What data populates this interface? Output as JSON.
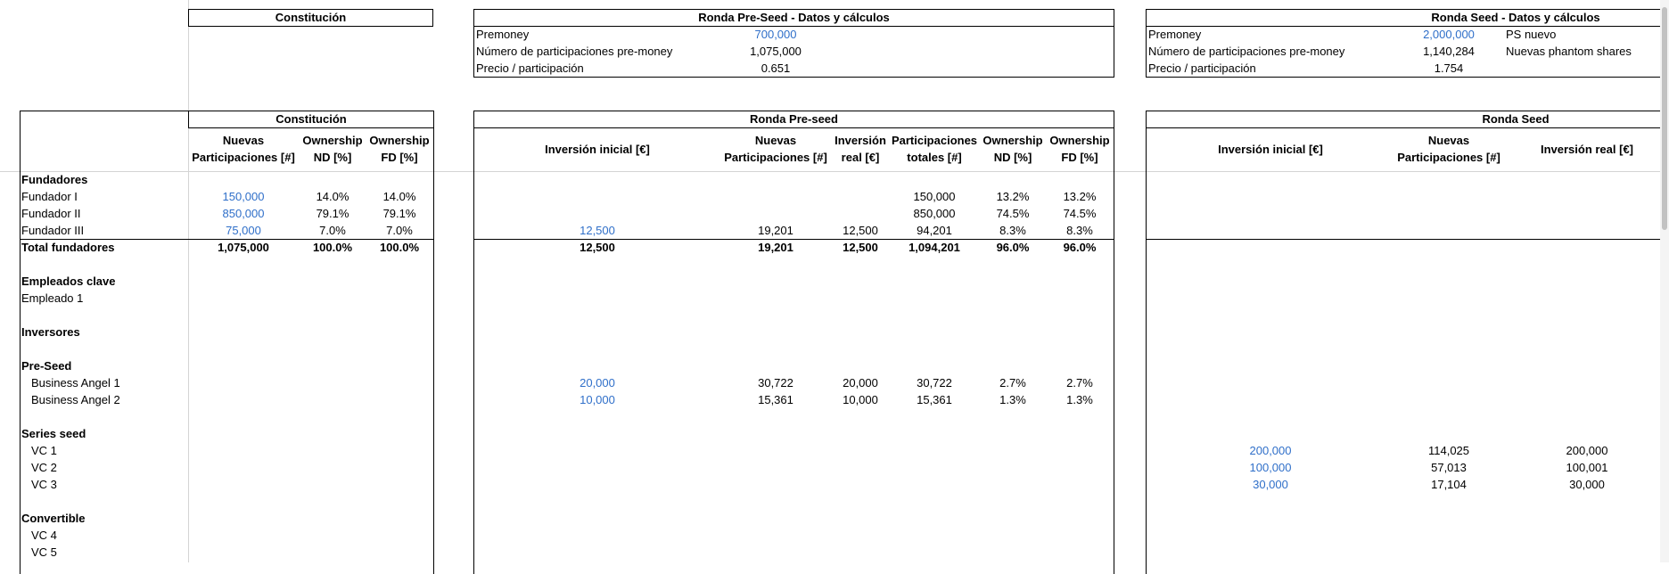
{
  "top": {
    "constitucion_title": "Constitución",
    "preseed": {
      "title": "Ronda Pre-Seed - Datos y cálculos",
      "premoney_label": "Premoney",
      "premoney_value": "700,000",
      "num_part_label": "Número de participaciones pre-money",
      "num_part_value": "1,075,000",
      "precio_label": "Precio / participación",
      "precio_value": "0.651"
    },
    "seed": {
      "title": "Ronda Seed - Datos y cálculos",
      "premoney_label": "Premoney",
      "premoney_value": "2,000,000",
      "premoney_note": "PS nuevo",
      "num_part_label": "Número de participaciones pre-money",
      "num_part_value": "1,140,284",
      "num_part_note": "Nuevas phantom shares",
      "precio_label": "Precio / participación",
      "precio_value": "1.754"
    }
  },
  "constitucion": {
    "title": "Constitución",
    "h_nuevas": "Nuevas",
    "h_nuevas2": "Participaciones [#]",
    "h_own_nd": "Ownership",
    "h_own_nd2": "ND [%]",
    "h_own_fd": "Ownership",
    "h_own_fd2": "FD [%]"
  },
  "preseed_table": {
    "title": "Ronda Pre-seed",
    "h_inversion": "Inversión inicial [€]",
    "h_nuevas": "Nuevas",
    "h_nuevas2": "Participaciones [#]",
    "h_inv_real": "Inversión",
    "h_inv_real2": "real [€]",
    "h_part_tot": "Participaciones",
    "h_part_tot2": "totales [#]",
    "h_own_nd": "Ownership",
    "h_own_nd2": "ND [%]",
    "h_own_fd": "Ownership",
    "h_own_fd2": "FD [%]"
  },
  "seed_table": {
    "title": "Ronda Seed",
    "h_inversion": "Inversión inicial [€]",
    "h_nuevas": "Nuevas",
    "h_nuevas2": "Participaciones [#]",
    "h_inv_real": "Inversión real [€]"
  },
  "rows": {
    "fundadores": "Fundadores",
    "f1": {
      "label": "Fundador I",
      "c_nuevas": "150,000",
      "c_nd": "14.0%",
      "c_fd": "14.0%",
      "p_tot": "150,000",
      "p_nd": "13.2%",
      "p_fd": "13.2%"
    },
    "f2": {
      "label": "Fundador II",
      "c_nuevas": "850,000",
      "c_nd": "79.1%",
      "c_fd": "79.1%",
      "p_tot": "850,000",
      "p_nd": "74.5%",
      "p_fd": "74.5%"
    },
    "f3": {
      "label": "Fundador III",
      "c_nuevas": "75,000",
      "c_nd": "7.0%",
      "c_fd": "7.0%",
      "p_inv": "12,500",
      "p_nuevas": "19,201",
      "p_real": "12,500",
      "p_tot": "94,201",
      "p_nd": "8.3%",
      "p_fd": "8.3%"
    },
    "total": {
      "label": "Total fundadores",
      "c_nuevas": "1,075,000",
      "c_nd": "100.0%",
      "c_fd": "100.0%",
      "p_inv": "12,500",
      "p_nuevas": "19,201",
      "p_real": "12,500",
      "p_tot": "1,094,201",
      "p_nd": "96.0%",
      "p_fd": "96.0%"
    },
    "empleados": "Empleados clave",
    "empleado1": "Empleado 1",
    "inversores": "Inversores",
    "preseed": "Pre-Seed",
    "ba1": {
      "label": "Business Angel 1",
      "p_inv": "20,000",
      "p_nuevas": "30,722",
      "p_real": "20,000",
      "p_tot": "30,722",
      "p_nd": "2.7%",
      "p_fd": "2.7%"
    },
    "ba2": {
      "label": "Business Angel 2",
      "p_inv": "10,000",
      "p_nuevas": "15,361",
      "p_real": "10,000",
      "p_tot": "15,361",
      "p_nd": "1.3%",
      "p_fd": "1.3%"
    },
    "series_seed": "Series seed",
    "vc1": {
      "label": "VC 1",
      "s_inv": "200,000",
      "s_nuevas": "114,025",
      "s_real": "200,000"
    },
    "vc2": {
      "label": "VC 2",
      "s_inv": "100,000",
      "s_nuevas": "57,013",
      "s_real": "100,001"
    },
    "vc3": {
      "label": "VC 3",
      "s_inv": "30,000",
      "s_nuevas": "17,104",
      "s_real": "30,000"
    },
    "convertible": "Convertible",
    "vc4": "VC 4",
    "vc5": "VC 5"
  },
  "colors": {
    "input_blue": "#2f6fc9",
    "border": "#000000",
    "gridline": "#d4d4d4"
  }
}
